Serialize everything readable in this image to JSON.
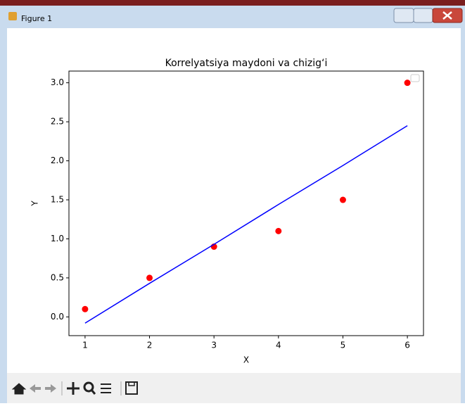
{
  "window": {
    "title": "Figure 1"
  },
  "chart_data": {
    "type": "scatter",
    "title": "Korrelyatsiya maydoni va chizig‘i",
    "x_label": "X",
    "y_label": "Y",
    "x": [
      1,
      2,
      3,
      4,
      5,
      6
    ],
    "series": [
      {
        "type": "scatter",
        "color": "#ff0000",
        "values": [
          0.1,
          0.5,
          0.9,
          1.1,
          1.5,
          3.0
        ]
      },
      {
        "type": "line",
        "color": "#0000ff",
        "values": [
          -0.08,
          0.43,
          0.93,
          1.44,
          1.94,
          2.45
        ]
      }
    ],
    "xlim": [
      0.75,
      6.25
    ],
    "xticks": [
      1,
      2,
      3,
      4,
      5,
      6
    ],
    "ylim": [
      -0.24,
      3.15
    ],
    "yticks": [
      {
        "value": 0,
        "label": "0.0"
      },
      {
        "value": 0.5,
        "label": "0.5"
      },
      {
        "value": 1,
        "label": "1.0"
      },
      {
        "value": 1.5,
        "label": "1.5"
      },
      {
        "value": 2,
        "label": "2.0"
      },
      {
        "value": 2.5,
        "label": "2.5"
      },
      {
        "value": 3,
        "label": "3.0"
      }
    ],
    "legend": "upper right"
  }
}
